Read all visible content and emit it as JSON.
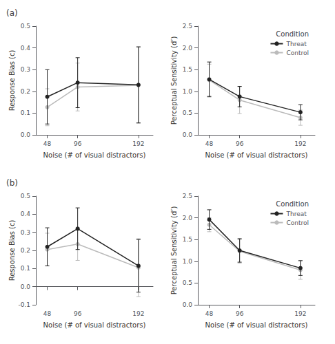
{
  "chart_data": [
    {
      "type": "line",
      "title": "(a)",
      "x": [
        48,
        96,
        192
      ],
      "xlabel": "Noise (# of visual distractors)",
      "ylabel": "Response Bias (c)",
      "xlim": [
        30,
        215
      ],
      "xticks": [
        48,
        96,
        192
      ],
      "ylim": [
        0.0,
        0.5
      ],
      "yticks": [
        {
          "value": 0.0,
          "label": "0.0"
        },
        0.1,
        0.2,
        0.3,
        0.4,
        0.5
      ],
      "grid": false,
      "marker": "circle",
      "series": [
        {
          "name": "Threat",
          "color": "#222222",
          "values": [
            0.175,
            0.24,
            0.23
          ],
          "yerr": [
            0.125,
            0.115,
            0.175
          ]
        },
        {
          "name": "Control",
          "color": "#bbbbbb",
          "values": [
            0.127,
            0.22,
            0.228
          ],
          "yerr": [
            0.085,
            0.11,
            0.175
          ]
        }
      ]
    },
    {
      "type": "line",
      "x": [
        48,
        96,
        192
      ],
      "xlabel": "Noise (# of visual distractors)",
      "ylabel": "Perceptual Sensitivity (d’)",
      "xlim": [
        30,
        215
      ],
      "xticks": [
        48,
        96,
        192
      ],
      "ylim": [
        0.0,
        2.5
      ],
      "yticks": [
        {
          "value": 0.0,
          "label": "0.0"
        },
        0.5,
        {
          "value": 1.0,
          "label": "1.0"
        },
        1.5,
        {
          "value": 2.0,
          "label": "2.0"
        },
        2.5
      ],
      "grid": false,
      "marker": "circle",
      "legend": "upper right",
      "legend_title": "Condition",
      "series": [
        {
          "name": "Threat",
          "color": "#222222",
          "values": [
            1.275,
            0.88,
            0.52
          ],
          "yerr": [
            0.4,
            0.235,
            0.175
          ]
        },
        {
          "name": "Control",
          "color": "#bbbbbb",
          "values": [
            1.26,
            0.8,
            0.395
          ],
          "yerr": [
            0.365,
            0.31,
            0.175
          ]
        }
      ]
    },
    {
      "type": "line",
      "title": "(b)",
      "x": [
        48,
        96,
        192
      ],
      "xlabel": "Noise (# of visual distractors)",
      "ylabel": "Response Bias (c)",
      "xlim": [
        30,
        215
      ],
      "xticks": [
        48,
        96,
        192
      ],
      "ylim": [
        -0.1,
        0.5
      ],
      "yticks": [
        -0.1,
        {
          "value": 0.0,
          "label": "0.0"
        },
        0.1,
        0.2,
        0.3,
        0.4,
        0.5
      ],
      "grid": false,
      "marker": "circle",
      "series": [
        {
          "name": "Threat",
          "color": "#222222",
          "values": [
            0.22,
            0.32,
            0.115
          ],
          "yerr": [
            0.105,
            0.115,
            0.145
          ]
        },
        {
          "name": "Control",
          "color": "#bbbbbb",
          "values": [
            0.205,
            0.235,
            0.105
          ],
          "yerr": [
            0.09,
            0.09,
            0.16
          ]
        }
      ]
    },
    {
      "type": "line",
      "x": [
        48,
        96,
        192
      ],
      "xlabel": "Noise (# of visual distractors)",
      "ylabel": "Perceptual Sensitivity (d’)",
      "xlim": [
        30,
        215
      ],
      "xticks": [
        48,
        96,
        192
      ],
      "ylim": [
        0.0,
        2.5
      ],
      "yticks": [
        {
          "value": 0.0,
          "label": "0.0"
        },
        0.5,
        {
          "value": 1.0,
          "label": "1.0"
        },
        1.5,
        {
          "value": 2.0,
          "label": "2.0"
        },
        2.5
      ],
      "grid": false,
      "marker": "circle",
      "legend": "upper right",
      "legend_title": "Condition",
      "series": [
        {
          "name": "Threat",
          "color": "#222222",
          "values": [
            1.96,
            1.25,
            0.845
          ],
          "yerr": [
            0.225,
            0.27,
            0.17
          ]
        },
        {
          "name": "Control",
          "color": "#bbbbbb",
          "values": [
            1.84,
            1.23,
            0.8
          ],
          "yerr": [
            0.16,
            0.27,
            0.215
          ]
        }
      ]
    }
  ]
}
